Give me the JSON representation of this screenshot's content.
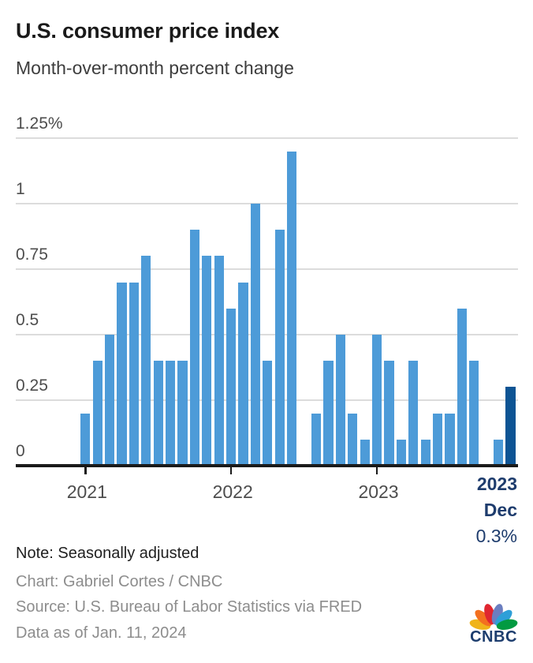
{
  "header": {
    "title": "U.S. consumer price index",
    "subtitle": "Month-over-month percent change"
  },
  "chart_data": {
    "type": "bar",
    "title": "U.S. consumer price index",
    "subtitle": "Month-over-month percent change",
    "unit": "percent",
    "x": [
      "Jan 2021",
      "Feb 2021",
      "Mar 2021",
      "Apr 2021",
      "May 2021",
      "Jun 2021",
      "Jul 2021",
      "Aug 2021",
      "Sep 2021",
      "Oct 2021",
      "Nov 2021",
      "Dec 2021",
      "Jan 2022",
      "Feb 2022",
      "Mar 2022",
      "Apr 2022",
      "May 2022",
      "Jun 2022",
      "Jul 2022",
      "Aug 2022",
      "Sep 2022",
      "Oct 2022",
      "Nov 2022",
      "Dec 2022",
      "Jan 2023",
      "Feb 2023",
      "Mar 2023",
      "Apr 2023",
      "May 2023",
      "Jun 2023",
      "Jul 2023",
      "Aug 2023",
      "Sep 2023",
      "Oct 2023",
      "Nov 2023",
      "Dec 2023"
    ],
    "values": [
      0.2,
      0.4,
      0.5,
      0.7,
      0.7,
      0.8,
      0.4,
      0.4,
      0.4,
      0.9,
      0.8,
      0.8,
      0.6,
      0.7,
      1.0,
      0.4,
      0.9,
      1.2,
      0.0,
      0.2,
      0.4,
      0.5,
      0.2,
      0.1,
      0.5,
      0.4,
      0.1,
      0.4,
      0.1,
      0.2,
      0.2,
      0.6,
      0.4,
      0.0,
      0.1,
      0.3
    ],
    "highlight": {
      "index": 35,
      "year": "2023",
      "month": "Dec",
      "value_label": "0.3%"
    },
    "y_axis": {
      "range": [
        0,
        1.25
      ],
      "ticks": [
        {
          "label": "1.25%",
          "value": 1.25
        },
        {
          "label": "1",
          "value": 1.0
        },
        {
          "label": "0.75",
          "value": 0.75
        },
        {
          "label": "0.5",
          "value": 0.5
        },
        {
          "label": "0.25",
          "value": 0.25
        },
        {
          "label": "0",
          "value": 0
        }
      ]
    },
    "x_axis": {
      "ticks": [
        {
          "label": "2021",
          "month_index": 0
        },
        {
          "label": "2022",
          "month_index": 12
        },
        {
          "label": "2023",
          "month_index": 24
        }
      ]
    },
    "colors": {
      "bar": "#4D9BD8",
      "highlight_bar": "#0D5494",
      "gridline": "#DCDCDC",
      "axis": "#1A1A1A",
      "annotation_text": "#1E3C6D"
    },
    "grid": true,
    "legend": false
  },
  "annotation": {
    "line1": "2023",
    "line2": "Dec",
    "line3": "0.3%"
  },
  "footer": {
    "note": "Note: Seasonally adjusted",
    "credit": "Chart: Gabriel Cortes / CNBC",
    "source": "Source: U.S. Bureau of Labor Statistics via FRED",
    "as_of": "Data as of Jan. 11, 2024"
  },
  "logo": {
    "brand": "CNBC",
    "wordmark_color": "#1D3D6E",
    "feather_colors": [
      "#F0B41B",
      "#F3701F",
      "#E02630",
      "#6B7EC0",
      "#2E9FD8",
      "#029A41"
    ]
  }
}
